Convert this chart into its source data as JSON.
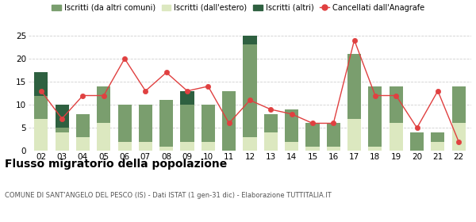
{
  "years": [
    "02",
    "03",
    "04",
    "05",
    "06",
    "07",
    "08",
    "09",
    "10",
    "11",
    "12",
    "13",
    "14",
    "15",
    "16",
    "17",
    "18",
    "19",
    "20",
    "21",
    "22"
  ],
  "iscritti_altri_comuni": [
    5,
    1,
    5,
    8,
    8,
    8,
    10,
    8,
    8,
    13,
    20,
    4,
    7,
    5,
    5,
    14,
    13,
    8,
    4,
    2,
    8
  ],
  "iscritti_estero": [
    7,
    4,
    3,
    6,
    2,
    2,
    1,
    2,
    2,
    0,
    3,
    4,
    2,
    1,
    1,
    7,
    1,
    6,
    0,
    2,
    6
  ],
  "iscritti_altri": [
    5,
    5,
    0,
    0,
    0,
    0,
    0,
    3,
    0,
    0,
    2,
    0,
    0,
    0,
    0,
    0,
    0,
    0,
    0,
    0,
    0
  ],
  "cancellati": [
    13,
    7,
    12,
    12,
    20,
    13,
    17,
    13,
    14,
    6,
    11,
    9,
    8,
    6,
    6,
    24,
    12,
    12,
    5,
    13,
    2
  ],
  "bar_color_altri_comuni": "#7a9e6e",
  "bar_color_estero": "#dce8c0",
  "bar_color_altri": "#2e6040",
  "line_color": "#e04040",
  "line_marker": "o",
  "title": "Flusso migratorio della popolazione",
  "subtitle": "COMUNE DI SANT'ANGELO DEL PESCO (IS) - Dati ISTAT (1 gen-31 dic) - Elaborazione TUTTITALIA.IT",
  "ylim": [
    0,
    25
  ],
  "yticks": [
    0,
    5,
    10,
    15,
    20,
    25
  ],
  "legend_labels": [
    "Iscritti (da altri comuni)",
    "Iscritti (dall'estero)",
    "Iscritti (altri)",
    "Cancellati dall'Anagrafe"
  ],
  "bg_color": "#ffffff",
  "grid_color": "#d0d0d0"
}
